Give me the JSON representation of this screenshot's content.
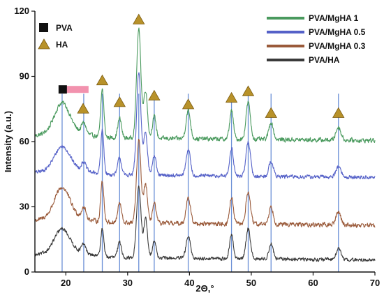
{
  "chart_data": {
    "type": "line",
    "xlabel": "2Θ,°",
    "ylabel": "Intensity  (a.u.)",
    "xlim": [
      15,
      70
    ],
    "ylim": [
      0,
      120
    ],
    "xticks": [
      20,
      30,
      40,
      50,
      60,
      70
    ],
    "yticks": [
      0,
      30,
      60,
      90,
      120
    ],
    "grid": false,
    "series_legend_placement": "top-right",
    "marker_legend_placement": "top-left",
    "series": [
      {
        "name": "PVA/MgHA 1",
        "color": "#4a9a5e",
        "offset": 62,
        "noise": 1.4
      },
      {
        "name": "PVA/MgHA 0.5",
        "color": "#5561c8",
        "offset": 45,
        "noise": 1.2
      },
      {
        "name": "PVA/MgHA 0.3",
        "color": "#9a5a3a",
        "offset": 23,
        "noise": 1.4
      },
      {
        "name": "PVA/HA",
        "color": "#3a3a3a",
        "offset": 7,
        "noise": 1.1
      }
    ],
    "peaks": [
      {
        "x": 19.4,
        "h": [
          13,
          10,
          13,
          10
        ],
        "w": 1.2
      },
      {
        "x": 22.9,
        "h": [
          5,
          4,
          5,
          4
        ],
        "w": 0.35
      },
      {
        "x": 25.9,
        "h": [
          22,
          20,
          19,
          13
        ],
        "w": 0.25
      },
      {
        "x": 28.7,
        "h": [
          9,
          8,
          9,
          7
        ],
        "w": 0.3
      },
      {
        "x": 31.8,
        "h": [
          50,
          47,
          38,
          33
        ],
        "w": 0.35
      },
      {
        "x": 32.9,
        "h": [
          22,
          20,
          18,
          18
        ],
        "w": 0.3
      },
      {
        "x": 34.3,
        "h": [
          10,
          9,
          9,
          8
        ],
        "w": 0.3
      },
      {
        "x": 39.8,
        "h": [
          13,
          12,
          12,
          10
        ],
        "w": 0.35
      },
      {
        "x": 46.8,
        "h": [
          13,
          13,
          12,
          11
        ],
        "w": 0.3
      },
      {
        "x": 49.5,
        "h": [
          17,
          16,
          15,
          14
        ],
        "w": 0.35
      },
      {
        "x": 53.2,
        "h": [
          8,
          7,
          8,
          7
        ],
        "w": 0.35
      },
      {
        "x": 64.1,
        "h": [
          6,
          5,
          6,
          5
        ],
        "w": 0.4
      }
    ],
    "markers": {
      "pva": [
        {
          "x": 19.5,
          "y": 84
        }
      ],
      "ha": [
        {
          "x": 22.8,
          "y": 75
        },
        {
          "x": 25.9,
          "y": 88
        },
        {
          "x": 28.7,
          "y": 78
        },
        {
          "x": 31.8,
          "y": 116
        },
        {
          "x": 34.3,
          "y": 81
        },
        {
          "x": 39.8,
          "y": 77
        },
        {
          "x": 46.8,
          "y": 80
        },
        {
          "x": 49.5,
          "y": 83
        },
        {
          "x": 53.2,
          "y": 73
        },
        {
          "x": 64.1,
          "y": 73
        }
      ]
    },
    "reference_lines_x": [
      19.4,
      22.9,
      25.9,
      28.7,
      31.8,
      34.3,
      39.8,
      46.8,
      49.5,
      53.2,
      64.1
    ],
    "marker_legend": [
      {
        "label": "PVA",
        "symbol": "square",
        "color": "#111111"
      },
      {
        "label": "HA",
        "symbol": "triangle",
        "color": "#b8922a"
      }
    ]
  },
  "colors": {
    "axis": "#111111",
    "reference_line": "#6a8fd6",
    "pva_highlight": "#f07fa0",
    "triangle_fill": "#b8922a",
    "triangle_stroke": "#7a5a10"
  }
}
